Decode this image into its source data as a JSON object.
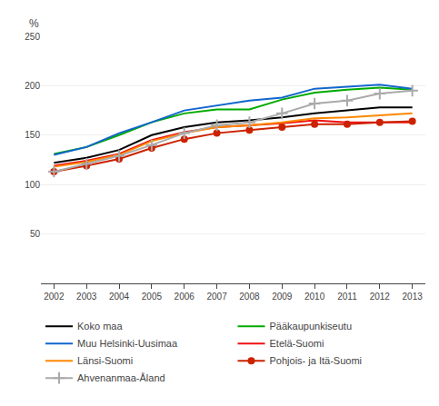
{
  "chart_data": {
    "type": "line",
    "ylabel": "%",
    "x": [
      2002,
      2003,
      2004,
      2005,
      2006,
      2007,
      2008,
      2009,
      2010,
      2011,
      2012,
      2013
    ],
    "series": [
      {
        "name": "Koko maa",
        "color": "#000000",
        "values": [
          122,
          127,
          135,
          150,
          158,
          163,
          165,
          168,
          172,
          175,
          178,
          178
        ]
      },
      {
        "name": "Pääkaupunkiseutu",
        "color": "#00aa00",
        "values": [
          131,
          138,
          150,
          163,
          172,
          176,
          176,
          186,
          193,
          196,
          198,
          196
        ]
      },
      {
        "name": "Muu Helsinki-Uusimaa",
        "color": "#1166cc",
        "values": [
          130,
          138,
          152,
          163,
          175,
          180,
          185,
          188,
          197,
          199,
          201,
          197
        ]
      },
      {
        "name": "Etelä-Suomi",
        "color": "#ee1111",
        "values": [
          119,
          124,
          131,
          145,
          153,
          158,
          160,
          162,
          165,
          163,
          163,
          163
        ]
      },
      {
        "name": "Länsi-Suomi",
        "color": "#ff8800",
        "values": [
          118,
          123,
          130,
          144,
          152,
          158,
          160,
          163,
          167,
          168,
          170,
          172
        ]
      },
      {
        "name": "Pohjois- ja Itä-Suomi",
        "color": "#cc2200",
        "marker": "circle",
        "values": [
          113,
          119,
          126,
          137,
          146,
          152,
          155,
          158,
          161,
          161,
          163,
          164
        ]
      },
      {
        "name": "Ahvenanmaa-Åland",
        "color": "#aaaaaa",
        "marker": "cross",
        "values": [
          113,
          121,
          129,
          140,
          152,
          160,
          163,
          172,
          182,
          185,
          192,
          195
        ]
      }
    ],
    "xlim": [
      2001.6,
      2013.4
    ],
    "xticks": [
      2002,
      2003,
      2004,
      2005,
      2006,
      2007,
      2008,
      2009,
      2010,
      2011,
      2012,
      2013
    ],
    "ylim": [
      0,
      250
    ],
    "yticks": [
      {
        "value": 0,
        "label": null
      },
      50,
      100,
      150,
      200,
      250
    ],
    "grid": true,
    "legend": "bottom"
  }
}
